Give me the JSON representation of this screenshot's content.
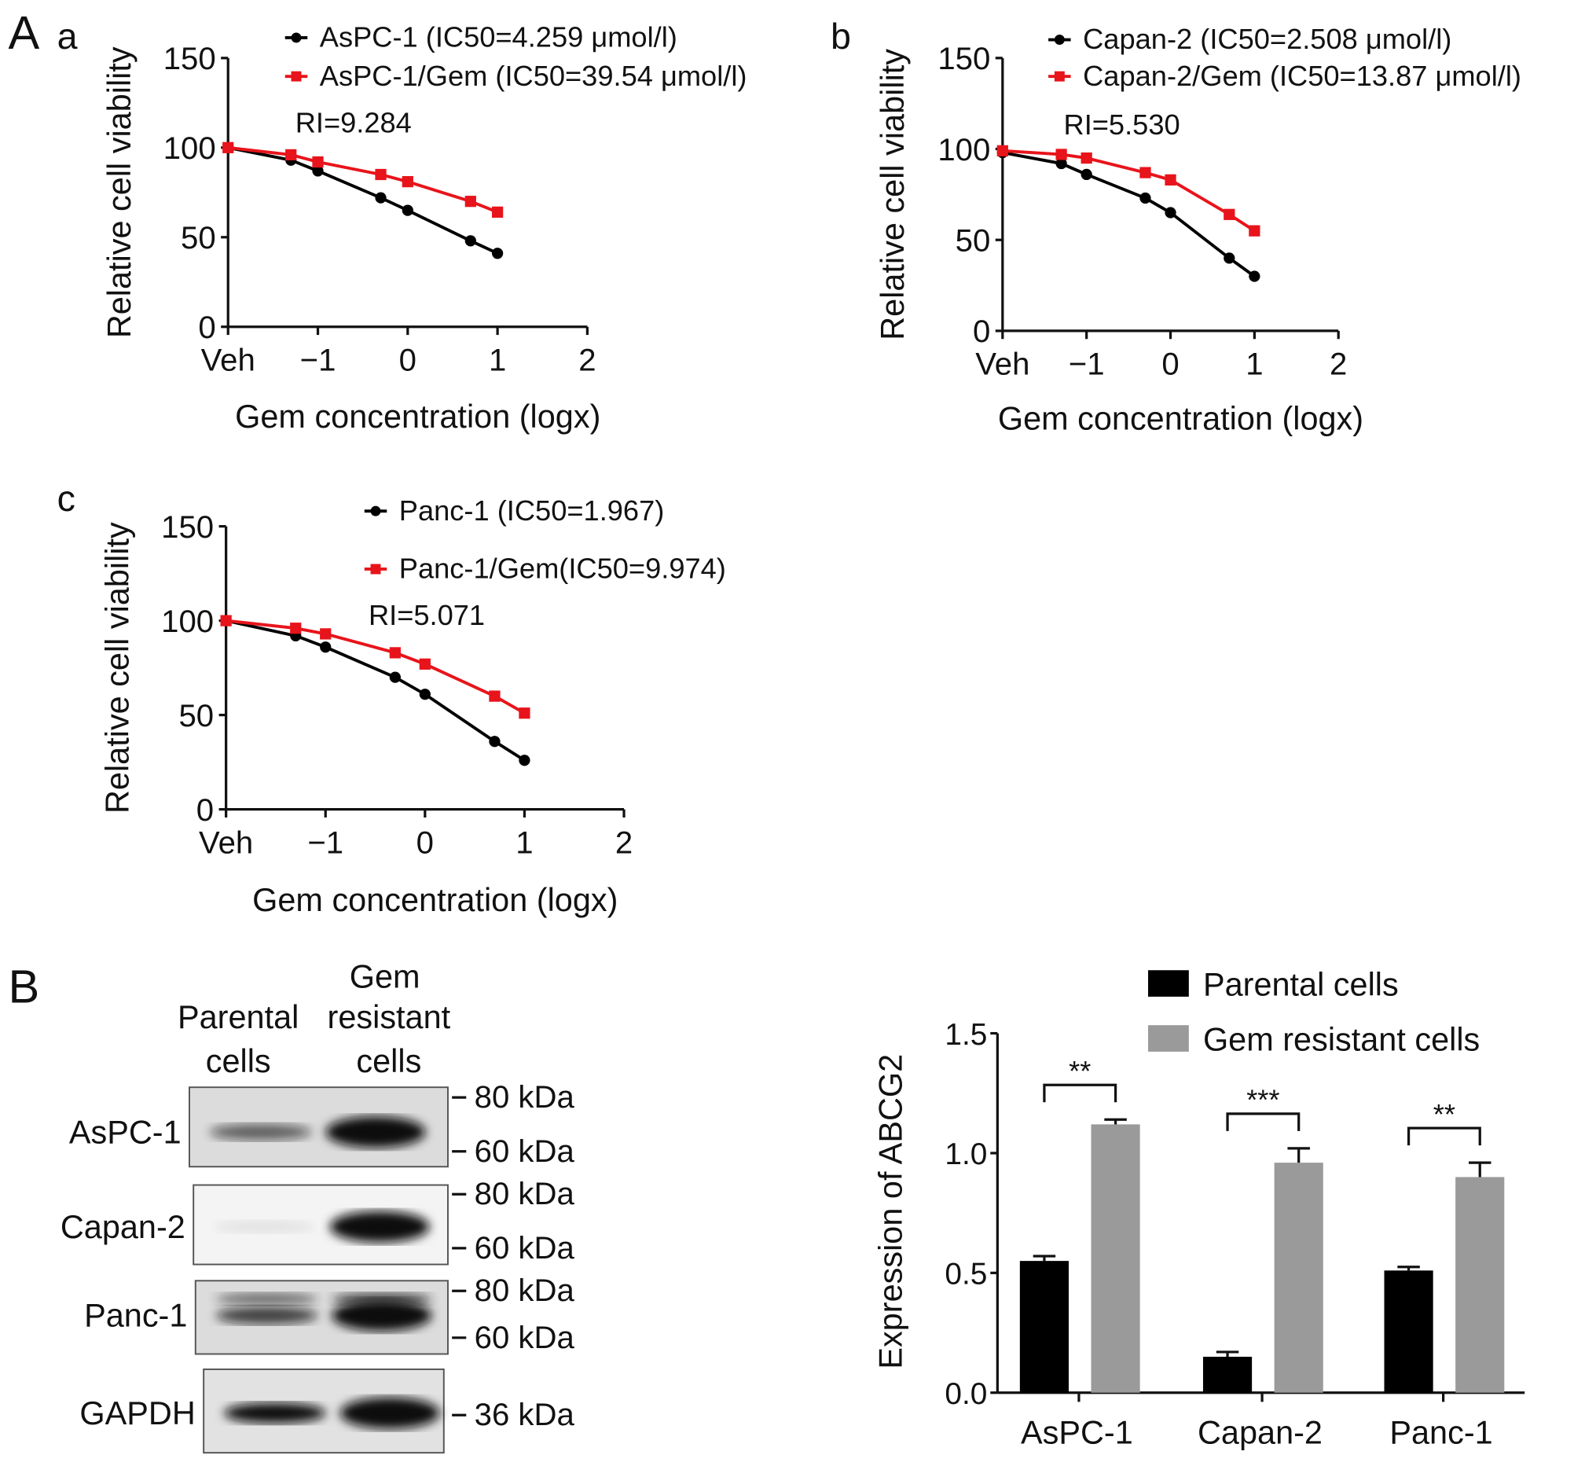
{
  "panel_labels": {
    "A": "A",
    "a": "a",
    "b": "b",
    "c": "c",
    "B": "B"
  },
  "colors": {
    "parental": "#000000",
    "resistant": "#e8141b",
    "resistant_bar": "#9a9a9a"
  },
  "chart_data": [
    {
      "type": "line",
      "panel": "a",
      "xlabel": "Gem concentration (logx)",
      "ylabel": "Relative cell viability",
      "xticks": [
        "Veh",
        "−1",
        "0",
        "1",
        "2"
      ],
      "yticks": [
        "0",
        "50",
        "100",
        "150"
      ],
      "ylim": [
        0,
        150
      ],
      "xlim": [
        -2,
        2
      ],
      "x": [
        -2,
        -1.3,
        -1,
        -0.3,
        0,
        0.7,
        1
      ],
      "series": [
        {
          "name": "AsPC-1 (IC50=4.259 μmol/l)",
          "color": "#000000",
          "marker": "circle",
          "values": [
            100,
            93,
            87,
            72,
            65,
            48,
            41
          ]
        },
        {
          "name": "AsPC-1/Gem (IC50=39.54 μmol/l)",
          "color": "#e8141b",
          "marker": "square",
          "values": [
            100,
            96,
            92,
            85,
            81,
            70,
            64
          ]
        }
      ],
      "annotation": "RI=9.284"
    },
    {
      "type": "line",
      "panel": "b",
      "xlabel": "Gem concentration (logx)",
      "ylabel": "Relative cell viability",
      "xticks": [
        "Veh",
        "−1",
        "0",
        "1",
        "2"
      ],
      "yticks": [
        "0",
        "50",
        "100",
        "150"
      ],
      "ylim": [
        0,
        150
      ],
      "xlim": [
        -2,
        2
      ],
      "x": [
        -2,
        -1.3,
        -1,
        -0.3,
        0,
        0.7,
        1
      ],
      "series": [
        {
          "name": "Capan-2 (IC50=2.508 μmol/l)",
          "color": "#000000",
          "marker": "circle",
          "values": [
            98,
            92,
            86,
            73,
            65,
            40,
            30
          ]
        },
        {
          "name": "Capan-2/Gem (IC50=13.87 μmol/l)",
          "color": "#e8141b",
          "marker": "square",
          "values": [
            99,
            97,
            95,
            87,
            83,
            64,
            55
          ]
        }
      ],
      "annotation": "RI=5.530"
    },
    {
      "type": "line",
      "panel": "c",
      "xlabel": "Gem concentration (logx)",
      "ylabel": "Relative cell viability",
      "xticks": [
        "Veh",
        "−1",
        "0",
        "1",
        "2"
      ],
      "yticks": [
        "0",
        "50",
        "100",
        "150"
      ],
      "ylim": [
        0,
        150
      ],
      "xlim": [
        -2,
        2
      ],
      "x": [
        -2,
        -1.3,
        -1,
        -0.3,
        0,
        0.7,
        1
      ],
      "series": [
        {
          "name": "Panc-1 (IC50=1.967)",
          "color": "#000000",
          "marker": "circle",
          "values": [
            100,
            92,
            86,
            70,
            61,
            36,
            26
          ]
        },
        {
          "name": "Panc-1/Gem(IC50=9.974)",
          "color": "#e8141b",
          "marker": "square",
          "values": [
            100,
            96,
            93,
            83,
            77,
            60,
            51
          ]
        }
      ],
      "annotation": "RI=5.071"
    },
    {
      "type": "bar",
      "panel": "B",
      "ylabel": "Expression of ABCG2",
      "categories": [
        "AsPC-1",
        "Capan-2",
        "Panc-1"
      ],
      "yticks": [
        "0.0",
        "0.5",
        "1.0",
        "1.5"
      ],
      "ylim": [
        0,
        1.5
      ],
      "series": [
        {
          "name": "Parental cells",
          "color": "#000000",
          "values": [
            0.55,
            0.15,
            0.51
          ],
          "errors": [
            0.02,
            0.02,
            0.015
          ]
        },
        {
          "name": "Gem resistant cells",
          "color": "#9a9a9a",
          "values": [
            1.12,
            0.96,
            0.9
          ],
          "errors": [
            0.02,
            0.06,
            0.06
          ]
        }
      ],
      "significance": [
        "**",
        "***",
        "**"
      ],
      "legend": "top-right"
    }
  ],
  "western_blot": {
    "column_headers": [
      [
        "Parental",
        "cells"
      ],
      [
        "Gem",
        "resistant",
        "cells"
      ]
    ],
    "rows": [
      {
        "label": "AsPC-1",
        "markers": [
          "80 kDa",
          "60 kDa"
        ],
        "parental": 0.6,
        "resistant": 1.0
      },
      {
        "label": "Capan-2",
        "markers": [
          "80 kDa",
          "60 kDa"
        ],
        "parental": 0.08,
        "resistant": 1.0
      },
      {
        "label": "Panc-1",
        "markers": [
          "80 kDa",
          "60 kDa"
        ],
        "parental": 0.75,
        "resistant": 1.0
      },
      {
        "label": "GAPDH",
        "markers": [
          "36 kDa"
        ],
        "parental": 1.0,
        "resistant": 1.0
      }
    ]
  }
}
